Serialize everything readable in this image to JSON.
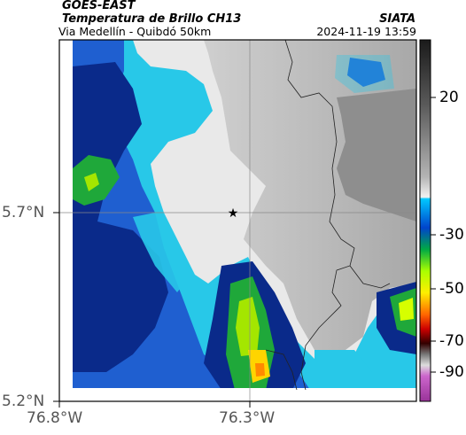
{
  "header": {
    "source": "GOES-EAST",
    "title": "Temperatura de Brillo CH13",
    "subtitle": "Via Medellín - Quibdó 50km",
    "agency": "SIATA",
    "timestamp": "2024-11-19 13:59"
  },
  "axes": {
    "y_ticks": [
      "5.7°N",
      "5.2°N"
    ],
    "x_ticks": [
      "76.8°W",
      "76.3°W"
    ]
  },
  "colorbar": {
    "ticks": [
      "20",
      "-30",
      "-50",
      "-70",
      "-90"
    ]
  },
  "marker": {
    "symbol": "★",
    "name": "location-star"
  }
}
